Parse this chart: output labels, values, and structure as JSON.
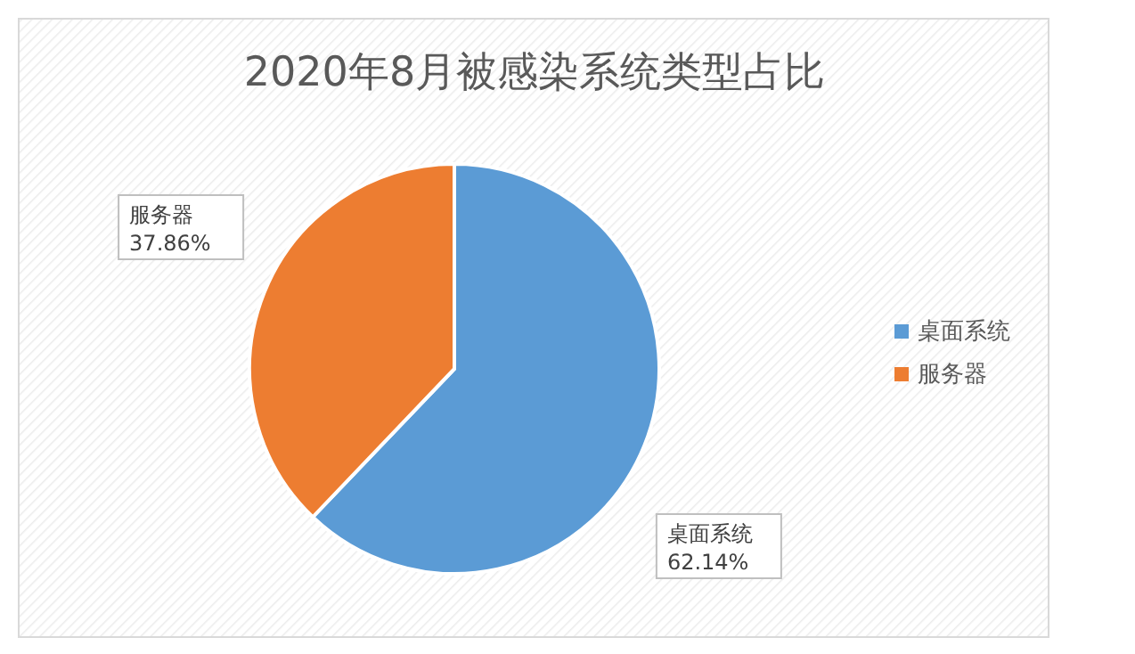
{
  "chart_data": {
    "type": "pie",
    "title": "2020年8月被感染系统类型占比",
    "categories": [
      "桌面系统",
      "服务器"
    ],
    "values": [
      62.14,
      37.86
    ],
    "colors": [
      "#5b9bd5",
      "#ed7d31"
    ],
    "value_labels": [
      "62.14%",
      "37.86%"
    ],
    "legend": "right"
  }
}
